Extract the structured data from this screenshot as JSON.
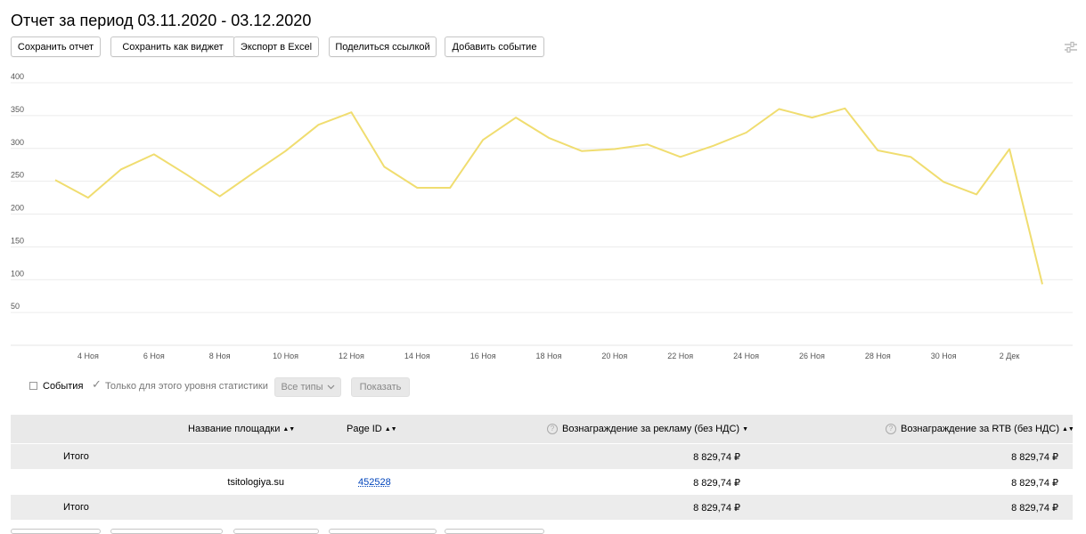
{
  "title": "Отчет за период 03.11.2020 - 03.12.2020",
  "toolbar": {
    "buttons": [
      {
        "label": "Сохранить отчет"
      },
      {
        "label": "Сохранить как виджет"
      },
      {
        "label": "Экспорт в Excel"
      },
      {
        "label": "Поделиться ссылкой"
      },
      {
        "label": "Добавить событие"
      }
    ],
    "settings_icon": "sliders-icon"
  },
  "chart_data": {
    "type": "line",
    "title": "",
    "xlabel": "",
    "ylabel": "",
    "ylim": [
      0,
      400
    ],
    "yticks": [
      50,
      100,
      150,
      200,
      250,
      300,
      350,
      400
    ],
    "grid": true,
    "x_tick_labels": [
      "4 Ноя",
      "6 Ноя",
      "8 Ноя",
      "10 Ноя",
      "12 Ноя",
      "14 Ноя",
      "16 Ноя",
      "18 Ноя",
      "20 Ноя",
      "22 Ноя",
      "24 Ноя",
      "26 Ноя",
      "28 Ноя",
      "30 Ноя",
      "2 Дек"
    ],
    "x": [
      "03.11.2020",
      "04.11.2020",
      "05.11.2020",
      "06.11.2020",
      "07.11.2020",
      "08.11.2020",
      "09.11.2020",
      "10.11.2020",
      "11.11.2020",
      "12.11.2020",
      "13.11.2020",
      "14.11.2020",
      "15.11.2020",
      "16.11.2020",
      "17.11.2020",
      "18.11.2020",
      "19.11.2020",
      "20.11.2020",
      "21.11.2020",
      "22.11.2020",
      "23.11.2020",
      "24.11.2020",
      "25.11.2020",
      "26.11.2020",
      "27.11.2020",
      "28.11.2020",
      "29.11.2020",
      "30.11.2020",
      "01.12.2020",
      "02.12.2020",
      "03.12.2020"
    ],
    "series": [
      {
        "values": [
          252,
          225,
          268,
          291,
          260,
          227,
          262,
          296,
          336,
          355,
          272,
          240,
          240,
          313,
          347,
          316,
          296,
          299,
          306,
          287,
          304,
          324,
          360,
          347,
          361,
          297,
          287,
          249,
          230,
          299,
          93
        ],
        "color": "#f0dd70"
      }
    ]
  },
  "filters": {
    "events_label": "События",
    "only_level_label": "Только для этого уровня статистики",
    "types_button": "Все типы",
    "show_button": "Показать"
  },
  "table": {
    "headers": {
      "name": "Название площадки",
      "page_id": "Page ID",
      "reward_ads": "Вознаграждение за рекламу (без НДС)",
      "reward_rtb": "Вознаграждение за RTB (без НДС)"
    },
    "total_top": {
      "label": "Итого",
      "reward_ads": "8 829,74 ₽",
      "reward_rtb": "8 829,74 ₽"
    },
    "rows": [
      {
        "name": "tsitologiya.su",
        "page_id": "452528",
        "reward_ads": "8 829,74 ₽",
        "reward_rtb": "8 829,74 ₽"
      }
    ],
    "total_bottom": {
      "label": "Итого",
      "reward_ads": "8 829,74 ₽",
      "reward_rtb": "8 829,74 ₽"
    }
  }
}
